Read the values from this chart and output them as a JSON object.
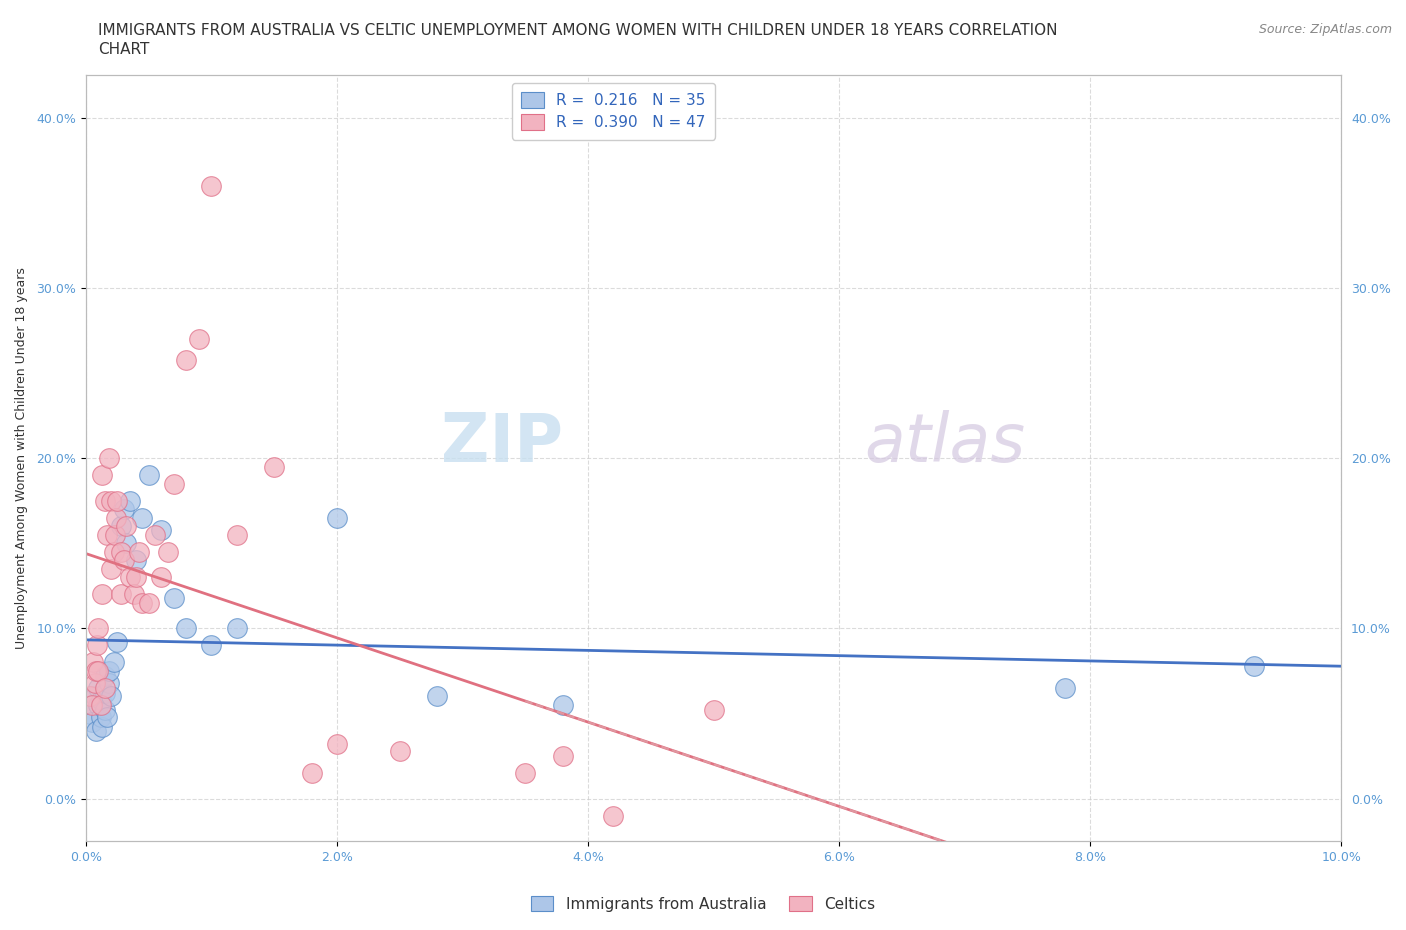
{
  "title_line1": "IMMIGRANTS FROM AUSTRALIA VS CELTIC UNEMPLOYMENT AMONG WOMEN WITH CHILDREN UNDER 18 YEARS CORRELATION",
  "title_line2": "CHART",
  "source": "Source: ZipAtlas.com",
  "ylabel": "Unemployment Among Women with Children Under 18 years",
  "xlim": [
    0.0,
    0.1
  ],
  "ylim": [
    -0.025,
    0.425
  ],
  "xticks": [
    0.0,
    0.02,
    0.04,
    0.06,
    0.08,
    0.1
  ],
  "yticks": [
    0.0,
    0.1,
    0.2,
    0.3,
    0.4
  ],
  "xticklabels": [
    "0.0%",
    "2.0%",
    "4.0%",
    "6.0%",
    "8.0%",
    "10.0%"
  ],
  "yticklabels": [
    "0.0%",
    "10.0%",
    "20.0%",
    "30.0%",
    "40.0%"
  ],
  "background_color": "#ffffff",
  "grid_color": "#cccccc",
  "australia_fill": "#adc6e8",
  "australia_edge": "#5b8ec9",
  "celtics_fill": "#f2b3c0",
  "celtics_edge": "#e07088",
  "australia_line_color": "#4472c4",
  "celtics_line_color": "#e07080",
  "celtics_dash_color": "#e0a0a8",
  "R_australia": "0.216",
  "N_australia": "35",
  "R_celtics": "0.390",
  "N_celtics": "47",
  "legend_label_australia": "Immigrants from Australia",
  "legend_label_celtics": "Celtics",
  "watermark_part1": "ZIP",
  "watermark_part2": "atlas",
  "title_fontsize": 11,
  "axis_label_fontsize": 9,
  "tick_fontsize": 9,
  "legend_fontsize": 11,
  "source_fontsize": 9,
  "australia_x": [
    0.0003,
    0.0005,
    0.0007,
    0.0008,
    0.001,
    0.001,
    0.0012,
    0.0012,
    0.0013,
    0.0015,
    0.0015,
    0.0015,
    0.0017,
    0.0018,
    0.0018,
    0.002,
    0.0022,
    0.0025,
    0.0028,
    0.003,
    0.0032,
    0.0035,
    0.004,
    0.0045,
    0.005,
    0.006,
    0.007,
    0.008,
    0.01,
    0.012,
    0.02,
    0.028,
    0.038,
    0.078,
    0.093
  ],
  "australia_y": [
    0.05,
    0.045,
    0.06,
    0.04,
    0.055,
    0.065,
    0.048,
    0.058,
    0.042,
    0.052,
    0.062,
    0.072,
    0.048,
    0.068,
    0.075,
    0.06,
    0.08,
    0.092,
    0.16,
    0.17,
    0.15,
    0.175,
    0.14,
    0.165,
    0.19,
    0.158,
    0.118,
    0.1,
    0.09,
    0.1,
    0.165,
    0.06,
    0.055,
    0.065,
    0.078
  ],
  "celtics_x": [
    0.0003,
    0.0005,
    0.0006,
    0.0007,
    0.0008,
    0.0009,
    0.001,
    0.001,
    0.0012,
    0.0013,
    0.0013,
    0.0015,
    0.0015,
    0.0017,
    0.0018,
    0.002,
    0.002,
    0.0022,
    0.0023,
    0.0024,
    0.0025,
    0.0028,
    0.0028,
    0.003,
    0.0032,
    0.0035,
    0.0038,
    0.004,
    0.0042,
    0.0045,
    0.005,
    0.0055,
    0.006,
    0.0065,
    0.007,
    0.008,
    0.009,
    0.01,
    0.012,
    0.015,
    0.018,
    0.02,
    0.025,
    0.035,
    0.038,
    0.042,
    0.05
  ],
  "celtics_y": [
    0.06,
    0.055,
    0.08,
    0.068,
    0.075,
    0.09,
    0.075,
    0.1,
    0.055,
    0.12,
    0.19,
    0.065,
    0.175,
    0.155,
    0.2,
    0.135,
    0.175,
    0.145,
    0.155,
    0.165,
    0.175,
    0.145,
    0.12,
    0.14,
    0.16,
    0.13,
    0.12,
    0.13,
    0.145,
    0.115,
    0.115,
    0.155,
    0.13,
    0.145,
    0.185,
    0.258,
    0.27,
    0.36,
    0.155,
    0.195,
    0.015,
    0.032,
    0.028,
    0.015,
    0.025,
    -0.01,
    0.052
  ]
}
